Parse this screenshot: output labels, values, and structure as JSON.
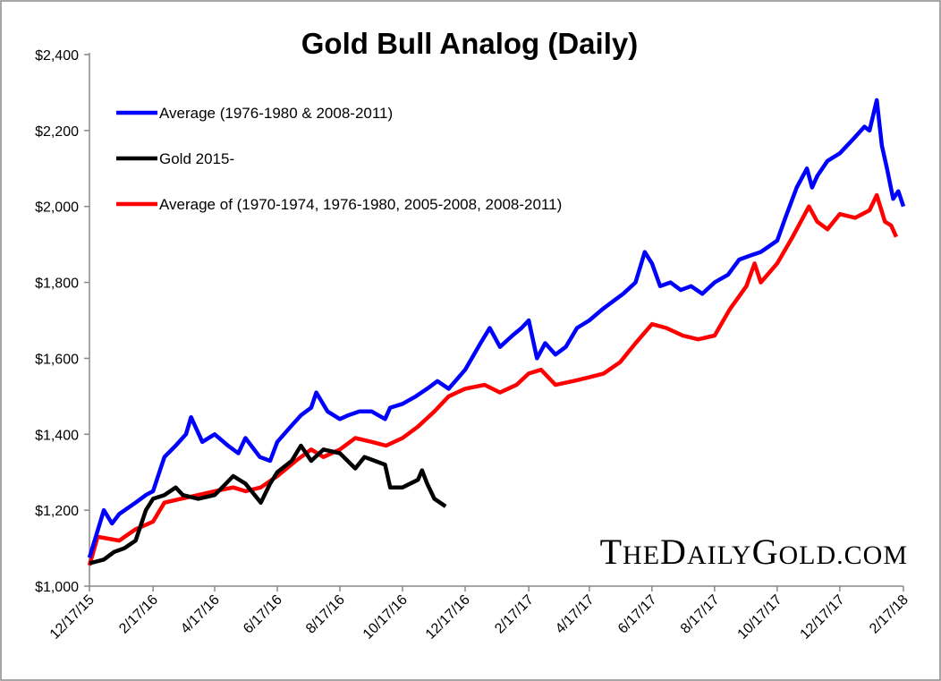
{
  "chart_data": {
    "type": "line",
    "title": "Gold Bull Analog (Daily)",
    "xlabel": "",
    "ylabel": "",
    "ylim": [
      1000,
      2400
    ],
    "xlim": [
      "2015-12-17",
      "2018-02-17"
    ],
    "y_ticks": [
      "$1,000",
      "$1,200",
      "$1,400",
      "$1,600",
      "$1,800",
      "$2,000",
      "$2,200",
      "$2,400"
    ],
    "y_tick_values": [
      1000,
      1200,
      1400,
      1600,
      1800,
      2000,
      2200,
      2400
    ],
    "x_ticks": [
      "12/17/15",
      "2/17/16",
      "4/17/16",
      "6/17/16",
      "8/17/16",
      "10/17/16",
      "12/17/16",
      "2/17/17",
      "4/17/17",
      "6/17/17",
      "8/17/17",
      "10/17/17",
      "12/17/17",
      "2/17/18"
    ],
    "x_tick_dates": [
      "2015-12-17",
      "2016-02-17",
      "2016-04-17",
      "2016-06-17",
      "2016-08-17",
      "2016-10-17",
      "2016-12-17",
      "2017-02-17",
      "2017-04-17",
      "2017-06-17",
      "2017-08-17",
      "2017-10-17",
      "2017-12-17",
      "2018-02-17"
    ],
    "grid": false,
    "legend_position": "top-left",
    "watermark": "TheDailyGold.com",
    "series": [
      {
        "name": "Average (1976-1980 & 2008-2011)",
        "color": "#0000ff",
        "points": [
          [
            "2015-12-17",
            1075
          ],
          [
            "2015-12-31",
            1200
          ],
          [
            "2016-01-08",
            1165
          ],
          [
            "2016-01-15",
            1190
          ],
          [
            "2016-01-31",
            1220
          ],
          [
            "2016-02-10",
            1240
          ],
          [
            "2016-02-17",
            1250
          ],
          [
            "2016-02-28",
            1340
          ],
          [
            "2016-03-10",
            1370
          ],
          [
            "2016-03-20",
            1400
          ],
          [
            "2016-03-25",
            1445
          ],
          [
            "2016-04-05",
            1380
          ],
          [
            "2016-04-17",
            1400
          ],
          [
            "2016-04-30",
            1370
          ],
          [
            "2016-05-10",
            1350
          ],
          [
            "2016-05-17",
            1390
          ],
          [
            "2016-05-31",
            1340
          ],
          [
            "2016-06-10",
            1330
          ],
          [
            "2016-06-17",
            1380
          ],
          [
            "2016-06-30",
            1420
          ],
          [
            "2016-07-10",
            1450
          ],
          [
            "2016-07-20",
            1470
          ],
          [
            "2016-07-25",
            1510
          ],
          [
            "2016-08-05",
            1460
          ],
          [
            "2016-08-17",
            1440
          ],
          [
            "2016-08-25",
            1450
          ],
          [
            "2016-09-05",
            1460
          ],
          [
            "2016-09-17",
            1460
          ],
          [
            "2016-09-30",
            1440
          ],
          [
            "2016-10-05",
            1470
          ],
          [
            "2016-10-17",
            1480
          ],
          [
            "2016-10-30",
            1500
          ],
          [
            "2016-11-10",
            1520
          ],
          [
            "2016-11-20",
            1540
          ],
          [
            "2016-12-01",
            1520
          ],
          [
            "2016-12-17",
            1570
          ],
          [
            "2017-01-01",
            1640
          ],
          [
            "2017-01-10",
            1680
          ],
          [
            "2017-01-20",
            1630
          ],
          [
            "2017-02-01",
            1660
          ],
          [
            "2017-02-10",
            1680
          ],
          [
            "2017-02-17",
            1700
          ],
          [
            "2017-02-25",
            1600
          ],
          [
            "2017-03-05",
            1640
          ],
          [
            "2017-03-15",
            1610
          ],
          [
            "2017-03-25",
            1630
          ],
          [
            "2017-04-05",
            1680
          ],
          [
            "2017-04-17",
            1700
          ],
          [
            "2017-04-30",
            1730
          ],
          [
            "2017-05-10",
            1750
          ],
          [
            "2017-05-20",
            1770
          ],
          [
            "2017-06-01",
            1800
          ],
          [
            "2017-06-10",
            1880
          ],
          [
            "2017-06-17",
            1850
          ],
          [
            "2017-06-25",
            1790
          ],
          [
            "2017-07-05",
            1800
          ],
          [
            "2017-07-15",
            1780
          ],
          [
            "2017-07-25",
            1790
          ],
          [
            "2017-08-05",
            1770
          ],
          [
            "2017-08-17",
            1800
          ],
          [
            "2017-08-30",
            1820
          ],
          [
            "2017-09-10",
            1860
          ],
          [
            "2017-09-20",
            1870
          ],
          [
            "2017-10-01",
            1880
          ],
          [
            "2017-10-17",
            1910
          ],
          [
            "2017-10-25",
            1970
          ],
          [
            "2017-11-05",
            2050
          ],
          [
            "2017-11-15",
            2100
          ],
          [
            "2017-11-20",
            2050
          ],
          [
            "2017-11-25",
            2080
          ],
          [
            "2017-12-05",
            2120
          ],
          [
            "2017-12-17",
            2140
          ],
          [
            "2017-12-31",
            2180
          ],
          [
            "2018-01-10",
            2210
          ],
          [
            "2018-01-15",
            2200
          ],
          [
            "2018-01-22",
            2280
          ],
          [
            "2018-01-27",
            2160
          ],
          [
            "2018-02-01",
            2100
          ],
          [
            "2018-02-07",
            2020
          ],
          [
            "2018-02-12",
            2040
          ],
          [
            "2018-02-17",
            2000
          ]
        ]
      },
      {
        "name": "Gold 2015-",
        "color": "#000000",
        "points": [
          [
            "2015-12-17",
            1060
          ],
          [
            "2015-12-31",
            1070
          ],
          [
            "2016-01-10",
            1090
          ],
          [
            "2016-01-20",
            1100
          ],
          [
            "2016-01-31",
            1120
          ],
          [
            "2016-02-10",
            1200
          ],
          [
            "2016-02-17",
            1230
          ],
          [
            "2016-02-28",
            1240
          ],
          [
            "2016-03-10",
            1260
          ],
          [
            "2016-03-17",
            1240
          ],
          [
            "2016-04-01",
            1230
          ],
          [
            "2016-04-17",
            1240
          ],
          [
            "2016-04-28",
            1270
          ],
          [
            "2016-05-05",
            1290
          ],
          [
            "2016-05-17",
            1270
          ],
          [
            "2016-06-01",
            1220
          ],
          [
            "2016-06-10",
            1270
          ],
          [
            "2016-06-17",
            1300
          ],
          [
            "2016-07-01",
            1330
          ],
          [
            "2016-07-10",
            1370
          ],
          [
            "2016-07-20",
            1330
          ],
          [
            "2016-08-01",
            1360
          ],
          [
            "2016-08-17",
            1350
          ],
          [
            "2016-09-01",
            1310
          ],
          [
            "2016-09-10",
            1340
          ],
          [
            "2016-09-20",
            1330
          ],
          [
            "2016-09-30",
            1320
          ],
          [
            "2016-10-05",
            1260
          ],
          [
            "2016-10-17",
            1260
          ],
          [
            "2016-11-01",
            1280
          ],
          [
            "2016-11-05",
            1305
          ],
          [
            "2016-11-10",
            1270
          ],
          [
            "2016-11-17",
            1230
          ],
          [
            "2016-11-28",
            1210
          ]
        ]
      },
      {
        "name": "Average of (1970-1974, 1976-1980, 2005-2008, 2008-2011)",
        "color": "#ff0000",
        "points": [
          [
            "2015-12-17",
            1055
          ],
          [
            "2015-12-25",
            1130
          ],
          [
            "2016-01-15",
            1120
          ],
          [
            "2016-01-31",
            1150
          ],
          [
            "2016-02-17",
            1170
          ],
          [
            "2016-02-28",
            1220
          ],
          [
            "2016-03-15",
            1230
          ],
          [
            "2016-04-01",
            1240
          ],
          [
            "2016-04-17",
            1250
          ],
          [
            "2016-05-05",
            1260
          ],
          [
            "2016-05-17",
            1250
          ],
          [
            "2016-06-01",
            1260
          ],
          [
            "2016-06-17",
            1290
          ],
          [
            "2016-07-05",
            1330
          ],
          [
            "2016-07-20",
            1360
          ],
          [
            "2016-08-01",
            1340
          ],
          [
            "2016-08-17",
            1360
          ],
          [
            "2016-09-01",
            1390
          ],
          [
            "2016-09-17",
            1380
          ],
          [
            "2016-10-01",
            1370
          ],
          [
            "2016-10-17",
            1390
          ],
          [
            "2016-11-01",
            1420
          ],
          [
            "2016-11-17",
            1460
          ],
          [
            "2016-12-01",
            1500
          ],
          [
            "2016-12-17",
            1520
          ],
          [
            "2017-01-05",
            1530
          ],
          [
            "2017-01-20",
            1510
          ],
          [
            "2017-02-05",
            1530
          ],
          [
            "2017-02-17",
            1560
          ],
          [
            "2017-03-01",
            1570
          ],
          [
            "2017-03-15",
            1530
          ],
          [
            "2017-04-01",
            1540
          ],
          [
            "2017-04-17",
            1550
          ],
          [
            "2017-05-01",
            1560
          ],
          [
            "2017-05-17",
            1590
          ],
          [
            "2017-06-01",
            1640
          ],
          [
            "2017-06-17",
            1690
          ],
          [
            "2017-07-01",
            1680
          ],
          [
            "2017-07-17",
            1660
          ],
          [
            "2017-08-01",
            1650
          ],
          [
            "2017-08-17",
            1660
          ],
          [
            "2017-09-01",
            1730
          ],
          [
            "2017-09-17",
            1790
          ],
          [
            "2017-09-25",
            1850
          ],
          [
            "2017-10-01",
            1800
          ],
          [
            "2017-10-17",
            1850
          ],
          [
            "2017-11-01",
            1920
          ],
          [
            "2017-11-17",
            2000
          ],
          [
            "2017-11-25",
            1960
          ],
          [
            "2017-12-05",
            1940
          ],
          [
            "2017-12-17",
            1980
          ],
          [
            "2018-01-01",
            1970
          ],
          [
            "2018-01-15",
            1990
          ],
          [
            "2018-01-22",
            2030
          ],
          [
            "2018-01-30",
            1960
          ],
          [
            "2018-02-05",
            1950
          ],
          [
            "2018-02-10",
            1920
          ]
        ]
      }
    ]
  }
}
